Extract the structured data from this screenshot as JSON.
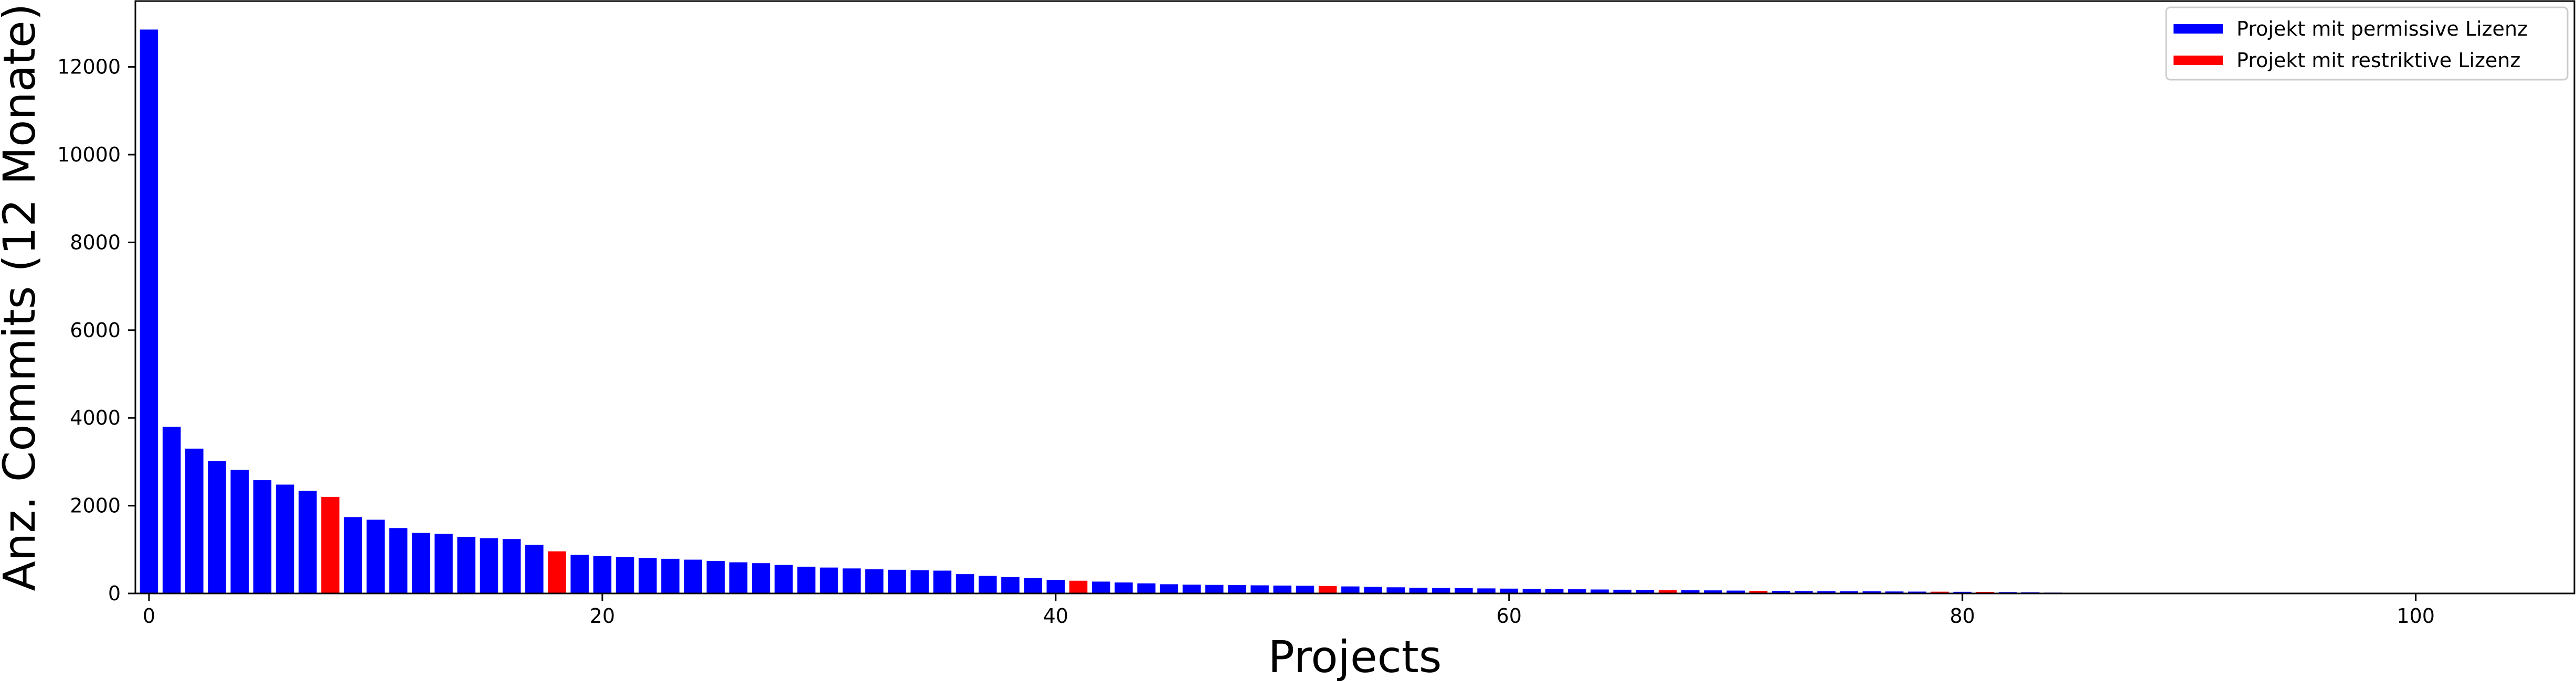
{
  "chart_data": {
    "type": "bar",
    "xlabel": "Projects",
    "ylabel": "Anz. Commits (12 Monate)",
    "xlim": [
      0,
      107
    ],
    "ylim": [
      0,
      13500
    ],
    "xticks": [
      0,
      20,
      40,
      60,
      80,
      100
    ],
    "yticks": [
      0,
      2000,
      4000,
      6000,
      8000,
      10000,
      12000
    ],
    "grid": false,
    "legend": {
      "placement": "top-right",
      "entries": [
        {
          "label": "Projekt mit permissive Lizenz",
          "color": "#0000ff"
        },
        {
          "label": "Projekt mit restriktive Lizenz",
          "color": "#ff0000"
        }
      ]
    },
    "colors": {
      "permissive": "#0000ff",
      "restrictive": "#ff0000"
    },
    "bars": [
      {
        "x": 0,
        "value": 12850,
        "license": "permissive"
      },
      {
        "x": 1,
        "value": 3800,
        "license": "permissive"
      },
      {
        "x": 2,
        "value": 3300,
        "license": "permissive"
      },
      {
        "x": 3,
        "value": 3020,
        "license": "permissive"
      },
      {
        "x": 4,
        "value": 2820,
        "license": "permissive"
      },
      {
        "x": 5,
        "value": 2580,
        "license": "permissive"
      },
      {
        "x": 6,
        "value": 2480,
        "license": "permissive"
      },
      {
        "x": 7,
        "value": 2340,
        "license": "permissive"
      },
      {
        "x": 8,
        "value": 2200,
        "license": "restrictive"
      },
      {
        "x": 9,
        "value": 1740,
        "license": "permissive"
      },
      {
        "x": 10,
        "value": 1680,
        "license": "permissive"
      },
      {
        "x": 11,
        "value": 1490,
        "license": "permissive"
      },
      {
        "x": 12,
        "value": 1380,
        "license": "permissive"
      },
      {
        "x": 13,
        "value": 1360,
        "license": "permissive"
      },
      {
        "x": 14,
        "value": 1290,
        "license": "permissive"
      },
      {
        "x": 15,
        "value": 1260,
        "license": "permissive"
      },
      {
        "x": 16,
        "value": 1240,
        "license": "permissive"
      },
      {
        "x": 17,
        "value": 1110,
        "license": "permissive"
      },
      {
        "x": 18,
        "value": 960,
        "license": "restrictive"
      },
      {
        "x": 19,
        "value": 880,
        "license": "permissive"
      },
      {
        "x": 20,
        "value": 850,
        "license": "permissive"
      },
      {
        "x": 21,
        "value": 830,
        "license": "permissive"
      },
      {
        "x": 22,
        "value": 810,
        "license": "permissive"
      },
      {
        "x": 23,
        "value": 790,
        "license": "permissive"
      },
      {
        "x": 24,
        "value": 770,
        "license": "permissive"
      },
      {
        "x": 25,
        "value": 740,
        "license": "permissive"
      },
      {
        "x": 26,
        "value": 710,
        "license": "permissive"
      },
      {
        "x": 27,
        "value": 690,
        "license": "permissive"
      },
      {
        "x": 28,
        "value": 650,
        "license": "permissive"
      },
      {
        "x": 29,
        "value": 610,
        "license": "permissive"
      },
      {
        "x": 30,
        "value": 590,
        "license": "permissive"
      },
      {
        "x": 31,
        "value": 570,
        "license": "permissive"
      },
      {
        "x": 32,
        "value": 550,
        "license": "permissive"
      },
      {
        "x": 33,
        "value": 540,
        "license": "permissive"
      },
      {
        "x": 34,
        "value": 530,
        "license": "permissive"
      },
      {
        "x": 35,
        "value": 520,
        "license": "permissive"
      },
      {
        "x": 36,
        "value": 440,
        "license": "permissive"
      },
      {
        "x": 37,
        "value": 400,
        "license": "permissive"
      },
      {
        "x": 38,
        "value": 370,
        "license": "permissive"
      },
      {
        "x": 39,
        "value": 350,
        "license": "permissive"
      },
      {
        "x": 40,
        "value": 310,
        "license": "permissive"
      },
      {
        "x": 41,
        "value": 290,
        "license": "restrictive"
      },
      {
        "x": 42,
        "value": 270,
        "license": "permissive"
      },
      {
        "x": 43,
        "value": 250,
        "license": "permissive"
      },
      {
        "x": 44,
        "value": 230,
        "license": "permissive"
      },
      {
        "x": 45,
        "value": 210,
        "license": "permissive"
      },
      {
        "x": 46,
        "value": 200,
        "license": "permissive"
      },
      {
        "x": 47,
        "value": 195,
        "license": "permissive"
      },
      {
        "x": 48,
        "value": 190,
        "license": "permissive"
      },
      {
        "x": 49,
        "value": 185,
        "license": "permissive"
      },
      {
        "x": 50,
        "value": 180,
        "license": "permissive"
      },
      {
        "x": 51,
        "value": 175,
        "license": "permissive"
      },
      {
        "x": 52,
        "value": 170,
        "license": "restrictive"
      },
      {
        "x": 53,
        "value": 160,
        "license": "permissive"
      },
      {
        "x": 54,
        "value": 150,
        "license": "permissive"
      },
      {
        "x": 55,
        "value": 140,
        "license": "permissive"
      },
      {
        "x": 56,
        "value": 130,
        "license": "permissive"
      },
      {
        "x": 57,
        "value": 125,
        "license": "permissive"
      },
      {
        "x": 58,
        "value": 120,
        "license": "permissive"
      },
      {
        "x": 59,
        "value": 115,
        "license": "permissive"
      },
      {
        "x": 60,
        "value": 110,
        "license": "permissive"
      },
      {
        "x": 61,
        "value": 105,
        "license": "permissive"
      },
      {
        "x": 62,
        "value": 100,
        "license": "permissive"
      },
      {
        "x": 63,
        "value": 95,
        "license": "permissive"
      },
      {
        "x": 64,
        "value": 90,
        "license": "permissive"
      },
      {
        "x": 65,
        "value": 85,
        "license": "permissive"
      },
      {
        "x": 66,
        "value": 80,
        "license": "permissive"
      },
      {
        "x": 67,
        "value": 75,
        "license": "restrictive"
      },
      {
        "x": 68,
        "value": 72,
        "license": "permissive"
      },
      {
        "x": 69,
        "value": 70,
        "license": "permissive"
      },
      {
        "x": 70,
        "value": 65,
        "license": "permissive"
      },
      {
        "x": 71,
        "value": 60,
        "license": "restrictive"
      },
      {
        "x": 72,
        "value": 58,
        "license": "permissive"
      },
      {
        "x": 73,
        "value": 55,
        "license": "permissive"
      },
      {
        "x": 74,
        "value": 52,
        "license": "permissive"
      },
      {
        "x": 75,
        "value": 50,
        "license": "permissive"
      },
      {
        "x": 76,
        "value": 48,
        "license": "permissive"
      },
      {
        "x": 77,
        "value": 45,
        "license": "permissive"
      },
      {
        "x": 78,
        "value": 42,
        "license": "permissive"
      },
      {
        "x": 79,
        "value": 40,
        "license": "restrictive"
      },
      {
        "x": 80,
        "value": 38,
        "license": "permissive"
      },
      {
        "x": 81,
        "value": 35,
        "license": "restrictive"
      },
      {
        "x": 82,
        "value": 30,
        "license": "permissive"
      },
      {
        "x": 83,
        "value": 25,
        "license": "permissive"
      },
      {
        "x": 84,
        "value": 20,
        "license": "permissive"
      },
      {
        "x": 85,
        "value": 15,
        "license": "permissive"
      },
      {
        "x": 86,
        "value": 12,
        "license": "permissive"
      },
      {
        "x": 87,
        "value": 10,
        "license": "permissive"
      },
      {
        "x": 88,
        "value": 8,
        "license": "permissive"
      },
      {
        "x": 89,
        "value": 7,
        "license": "permissive"
      },
      {
        "x": 90,
        "value": 6,
        "license": "permissive"
      },
      {
        "x": 91,
        "value": 5,
        "license": "permissive"
      },
      {
        "x": 92,
        "value": 5,
        "license": "permissive"
      },
      {
        "x": 93,
        "value": 4,
        "license": "permissive"
      },
      {
        "x": 94,
        "value": 4,
        "license": "permissive"
      },
      {
        "x": 95,
        "value": 3,
        "license": "permissive"
      },
      {
        "x": 96,
        "value": 3,
        "license": "permissive"
      },
      {
        "x": 97,
        "value": 2,
        "license": "permissive"
      },
      {
        "x": 98,
        "value": 2,
        "license": "permissive"
      },
      {
        "x": 99,
        "value": 2,
        "license": "permissive"
      },
      {
        "x": 100,
        "value": 1,
        "license": "permissive"
      },
      {
        "x": 101,
        "value": 1,
        "license": "permissive"
      },
      {
        "x": 102,
        "value": 1,
        "license": "permissive"
      },
      {
        "x": 103,
        "value": 1,
        "license": "permissive"
      },
      {
        "x": 104,
        "value": 1,
        "license": "permissive"
      },
      {
        "x": 105,
        "value": 1,
        "license": "permissive"
      },
      {
        "x": 106,
        "value": 1,
        "license": "permissive"
      }
    ]
  }
}
